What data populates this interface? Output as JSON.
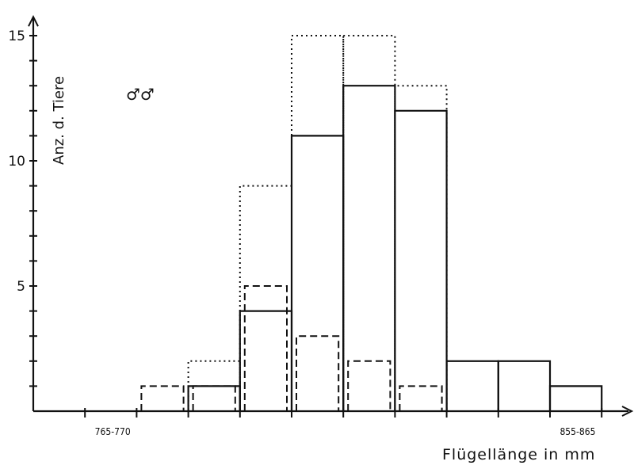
{
  "chart_data": {
    "type": "bar",
    "xlabel": "Flügellänge in mm",
    "ylabel": "Anz. d. Tiere",
    "symbol": "♂♂",
    "ylim": [
      0,
      15.5
    ],
    "yticks_labeled": [
      5,
      10,
      15
    ],
    "bins": 11,
    "category_labels": [
      {
        "bin_edge": 1,
        "text": "765-770"
      },
      {
        "bin_edge": 10,
        "text": "855-865"
      }
    ],
    "series": [
      {
        "style": "solid",
        "bars": [
          {
            "bin": 3,
            "value": 1
          },
          {
            "bin": 4,
            "value": 4
          },
          {
            "bin": 5,
            "value": 11
          },
          {
            "bin": 6,
            "value": 13
          },
          {
            "bin": 7,
            "value": 12
          },
          {
            "bin": 8,
            "value": 2
          },
          {
            "bin": 9,
            "value": 2
          },
          {
            "bin": 10,
            "value": 1
          }
        ]
      },
      {
        "style": "dashed",
        "bars": [
          {
            "bin": 2,
            "value": 1
          },
          {
            "bin": 3,
            "value": 1
          },
          {
            "bin": 4,
            "value": 5
          },
          {
            "bin": 5,
            "value": 3
          },
          {
            "bin": 6,
            "value": 2
          },
          {
            "bin": 7,
            "value": 1
          }
        ]
      },
      {
        "style": "dotted",
        "bars": [
          {
            "bin": 3,
            "value": 2
          },
          {
            "bin": 4,
            "value": 9
          },
          {
            "bin": 5,
            "value": 15
          },
          {
            "bin": 6,
            "value": 15
          },
          {
            "bin": 7,
            "value": 13
          }
        ]
      }
    ]
  }
}
